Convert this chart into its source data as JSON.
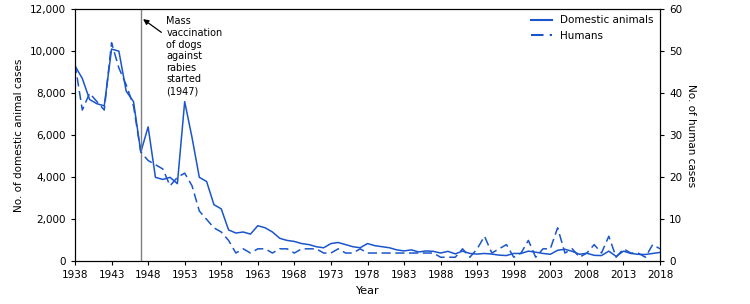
{
  "years": [
    1938,
    1939,
    1940,
    1941,
    1942,
    1943,
    1944,
    1945,
    1946,
    1947,
    1948,
    1949,
    1950,
    1951,
    1952,
    1953,
    1954,
    1955,
    1956,
    1957,
    1958,
    1959,
    1960,
    1961,
    1962,
    1963,
    1964,
    1965,
    1966,
    1967,
    1968,
    1969,
    1970,
    1971,
    1972,
    1973,
    1974,
    1975,
    1976,
    1977,
    1978,
    1979,
    1980,
    1981,
    1982,
    1983,
    1984,
    1985,
    1986,
    1987,
    1988,
    1989,
    1990,
    1991,
    1992,
    1993,
    1994,
    1995,
    1996,
    1997,
    1998,
    1999,
    2000,
    2001,
    2002,
    2003,
    2004,
    2005,
    2006,
    2007,
    2008,
    2009,
    2010,
    2011,
    2012,
    2013,
    2014,
    2015,
    2016,
    2017,
    2018
  ],
  "domestic_animals": [
    9300,
    8700,
    7700,
    7500,
    7400,
    10100,
    10000,
    8100,
    7600,
    5200,
    6400,
    4000,
    3900,
    4000,
    3700,
    7600,
    5900,
    4000,
    3800,
    2700,
    2500,
    1500,
    1350,
    1400,
    1300,
    1700,
    1600,
    1400,
    1100,
    1000,
    950,
    850,
    800,
    700,
    650,
    850,
    900,
    800,
    700,
    650,
    850,
    750,
    700,
    650,
    550,
    500,
    550,
    450,
    500,
    480,
    400,
    480,
    360,
    490,
    380,
    350,
    380,
    350,
    300,
    280,
    380,
    380,
    490,
    440,
    380,
    340,
    530,
    580,
    480,
    340,
    390,
    290,
    280,
    490,
    240,
    490,
    380,
    340,
    330,
    380,
    430
  ],
  "humans": [
    47,
    36,
    40,
    38,
    36,
    52,
    46,
    42,
    37,
    26,
    24,
    23,
    22,
    18,
    20,
    21,
    18,
    12,
    10,
    8,
    7,
    5,
    2,
    3,
    2,
    3,
    3,
    2,
    3,
    3,
    2,
    3,
    3,
    3,
    2,
    2,
    3,
    2,
    2,
    3,
    2,
    2,
    2,
    2,
    2,
    2,
    2,
    2,
    2,
    2,
    1,
    1,
    1,
    3,
    1,
    3,
    6,
    2,
    3,
    4,
    1,
    2,
    5,
    1,
    3,
    3,
    8,
    2,
    3,
    1,
    2,
    4,
    2,
    6,
    1,
    3,
    2,
    2,
    1,
    4,
    3
  ],
  "vline_x": 1947,
  "annotation_text": "Mass\nvaccination\nof dogs\nagainst\nrabies\nstarted\n(1947)",
  "line_color": "#1a55cc",
  "xlabel": "Year",
  "ylabel_left": "No. of domestic animal cases",
  "ylabel_right": "No. of human cases",
  "ylim_left": [
    0,
    12000
  ],
  "ylim_right": [
    0,
    60
  ],
  "yticks_left": [
    0,
    2000,
    4000,
    6000,
    8000,
    10000,
    12000
  ],
  "yticks_right": [
    0,
    10,
    20,
    30,
    40,
    50,
    60
  ],
  "xticks": [
    1938,
    1943,
    1948,
    1953,
    1958,
    1963,
    1968,
    1973,
    1978,
    1983,
    1988,
    1993,
    1998,
    2003,
    2008,
    2013,
    2018
  ],
  "legend_domestic": "Domestic animals",
  "legend_humans": "Humans"
}
